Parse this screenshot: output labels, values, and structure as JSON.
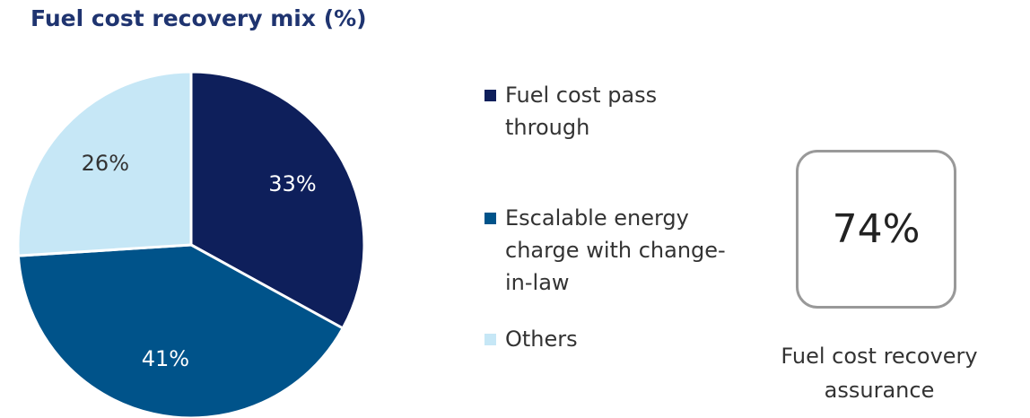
{
  "chart_data": {
    "type": "pie",
    "title": "Fuel cost recovery mix (%)",
    "categories": [
      "Fuel cost pass through",
      "Escalable energy charge with change-in-law",
      "Others"
    ],
    "values": [
      33,
      41,
      26
    ],
    "value_labels": [
      "33%",
      "41%",
      "26%"
    ],
    "colors": [
      "#0e1f5b",
      "#00538a",
      "#c6e7f6"
    ],
    "label_colors": [
      "#ffffff",
      "#ffffff",
      "#333333"
    ],
    "legend": "right",
    "callout": {
      "value_label": "74%",
      "caption": "Fuel cost recovery assurance"
    }
  }
}
